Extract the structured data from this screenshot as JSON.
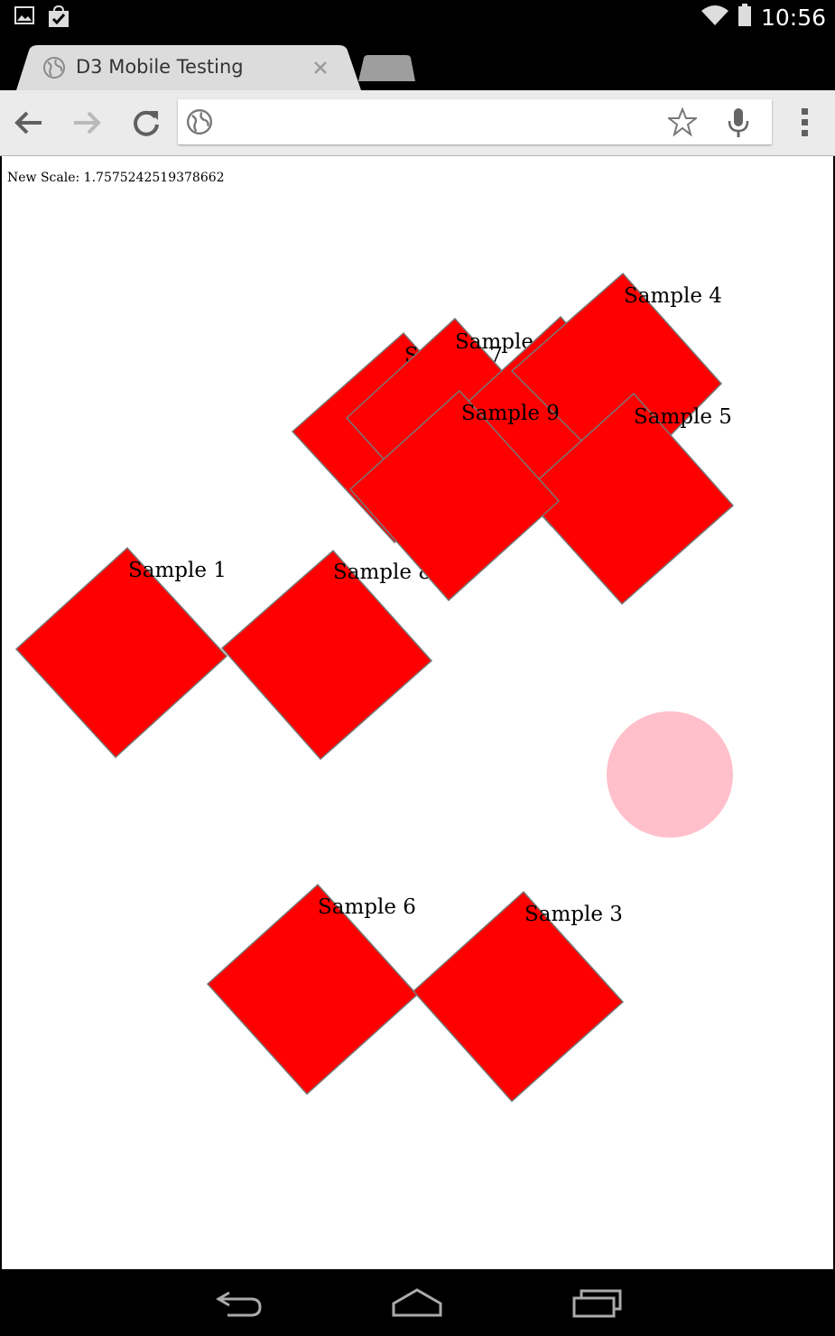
{
  "status_bar": {
    "time": "10:56",
    "left_icons": [
      "gallery-icon",
      "store-checkmark-icon"
    ],
    "right_icons": [
      "wifi-icon",
      "battery-icon"
    ]
  },
  "browser": {
    "tab": {
      "title": "D3 Mobile Testing",
      "favicon": "globe-icon"
    },
    "toolbar": {
      "back": "back-arrow-icon",
      "forward": "forward-arrow-icon",
      "reload": "reload-icon",
      "menu": "overflow-menu-icon"
    },
    "omnibox": {
      "value": "",
      "placeholder": ""
    }
  },
  "page": {
    "scale_label": "New Scale: 1.7575242519378662",
    "shapes": {
      "fill": "#ff0000",
      "stroke": "#777777",
      "circle_fill": "#ffc0cb"
    },
    "samples": [
      "Sample 1",
      "Sample 8",
      "Sample 7",
      "Sample 2",
      "Sample 4",
      "Sample 9",
      "Sample 5",
      "Sample 6",
      "Sample 3"
    ]
  },
  "nav_bar": {
    "buttons": [
      "back-icon",
      "home-icon",
      "recents-icon"
    ]
  }
}
